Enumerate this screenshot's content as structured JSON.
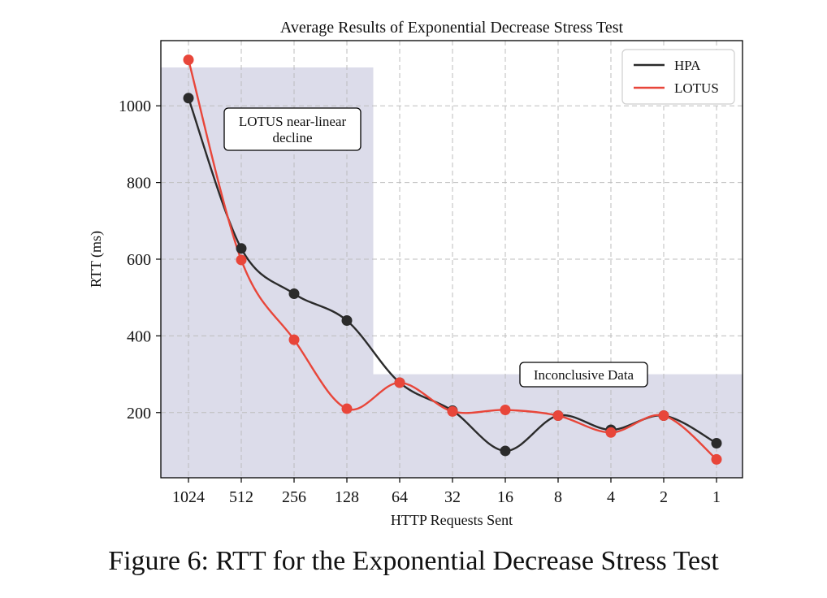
{
  "chart_data": {
    "type": "line",
    "title": "Average Results of Exponential Decrease Stress Test",
    "xlabel": "HTTP Requests Sent",
    "ylabel": "RTT (ms)",
    "categories": [
      "1024",
      "512",
      "256",
      "128",
      "64",
      "32",
      "16",
      "8",
      "4",
      "2",
      "1"
    ],
    "ylim": [
      30,
      1170
    ],
    "yticks": [
      200,
      400,
      600,
      800,
      1000
    ],
    "grid": true,
    "legend_position": "top-right",
    "series": [
      {
        "name": "HPA",
        "color": "#2b2b2b",
        "values": [
          1020,
          628,
          510,
          440,
          278,
          205,
          100,
          192,
          155,
          192,
          120
        ]
      },
      {
        "name": "LOTUS",
        "color": "#e8463a",
        "values": [
          1120,
          598,
          390,
          210,
          278,
          203,
          207,
          192,
          148,
          192,
          78
        ]
      }
    ],
    "shaded_regions": [
      {
        "x_from": "1024",
        "x_to": "128",
        "y_to": 1100,
        "label": "LOTUS near-linear\ndecline"
      },
      {
        "x_from": "64",
        "x_to": "1",
        "y_to": 300,
        "label": "Inconclusive Data"
      }
    ],
    "shade_color": "#dcdcea"
  },
  "caption": "Figure 6: RTT for the Exponential Decrease Stress Test"
}
